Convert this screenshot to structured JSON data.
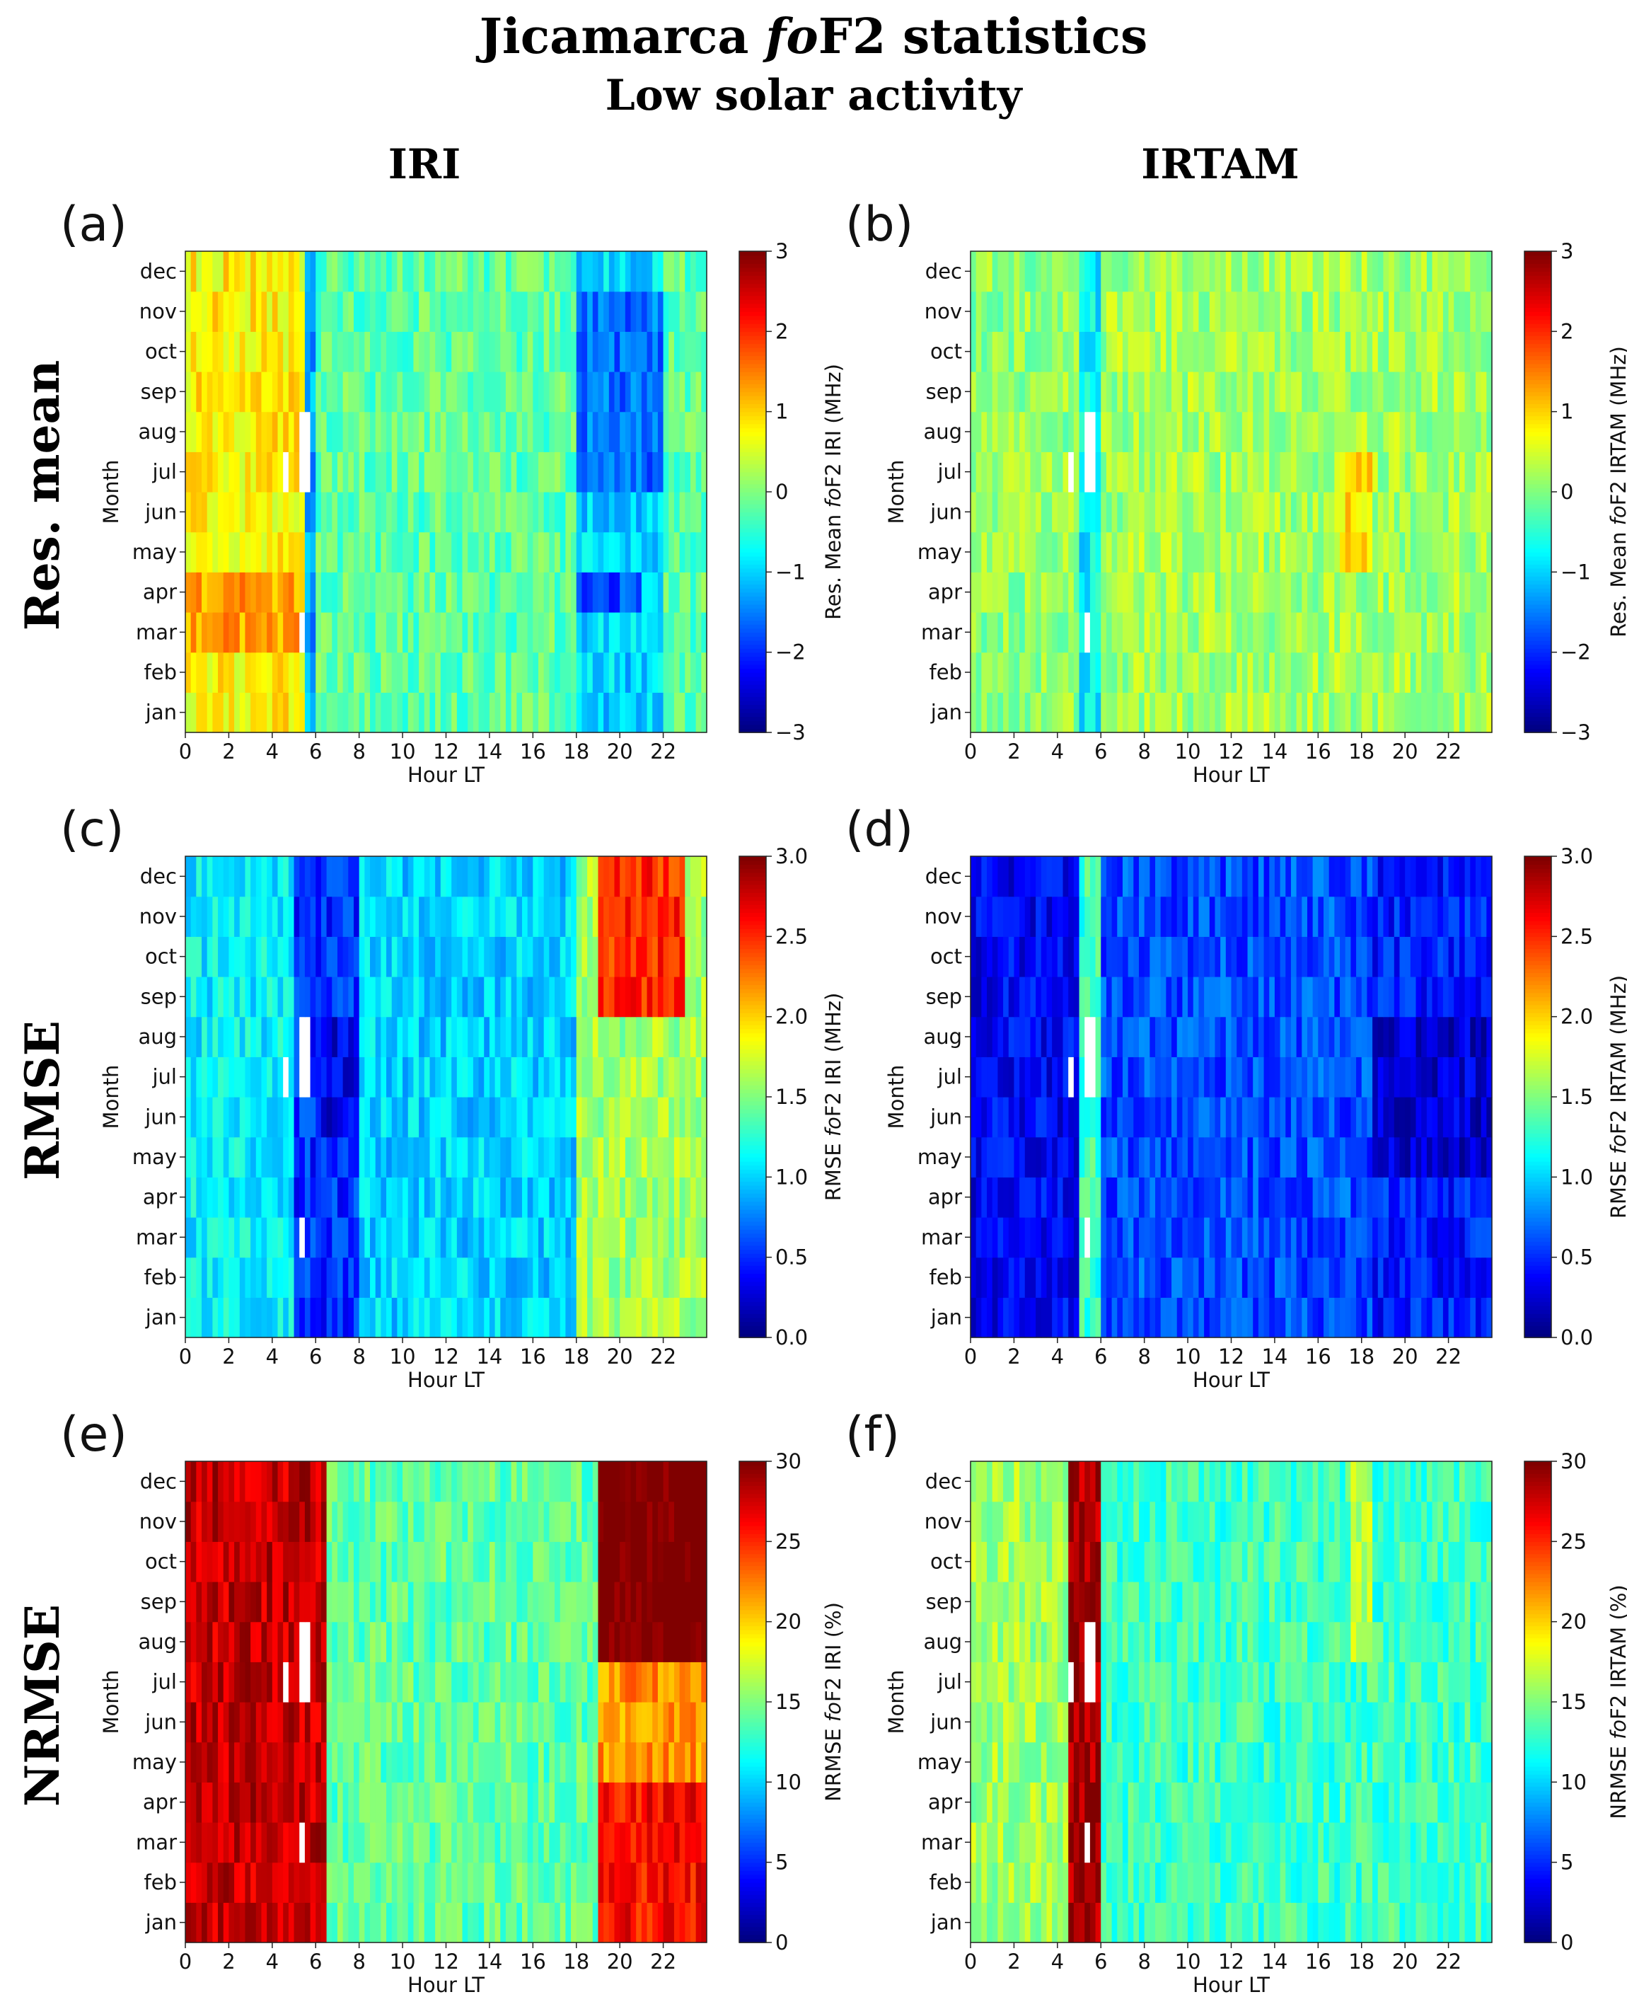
{
  "figure": {
    "title": "Jicamarca foF2 statistics",
    "title_prefix": "Jicamarca ",
    "title_italic": "fo",
    "title_suffix": "F2 statistics",
    "subtitle": "Low solar activity",
    "columns": [
      "IRI",
      "IRTAM"
    ],
    "rows": [
      "Res. mean",
      "RMSE",
      "NRMSE"
    ]
  },
  "colormap": "jet",
  "chart_data": [
    {
      "panel": "(a)",
      "type": "heatmap",
      "model": "IRI",
      "statistic": "Res. mean",
      "xlabel": "Hour LT",
      "ylabel": "Month",
      "x_ticks": [
        "0",
        "2",
        "4",
        "6",
        "8",
        "10",
        "12",
        "14",
        "16",
        "18",
        "20",
        "22"
      ],
      "y_categories": [
        "jan",
        "feb",
        "mar",
        "apr",
        "may",
        "jun",
        "jul",
        "aug",
        "sep",
        "oct",
        "nov",
        "dec"
      ],
      "xlim": [
        0,
        24
      ],
      "colorbar_label": "Res. Mean foF2 IRI (MHz)",
      "colorbar_label_parts": [
        "Res. Mean ",
        "fo",
        "F2 IRI (MHz)"
      ],
      "clim": [
        -3,
        3
      ],
      "colorbar_ticks": [
        "−3",
        "−2",
        "−1",
        "0",
        "1",
        "2",
        "3"
      ],
      "approx_pattern": [
        {
          "hours": [
            0,
            5.3
          ],
          "value": 0.8
        },
        {
          "hours": [
            5.3,
            6.0
          ],
          "value": -1.3
        },
        {
          "hours": [
            6.0,
            18.0
          ],
          "value": -0.2
        },
        {
          "hours": [
            18.0,
            22.0
          ],
          "value": -1.0
        },
        {
          "hours": [
            22.0,
            24.0
          ],
          "value": -0.2
        }
      ],
      "notes": "Bright yellow-orange 0-5 LT (strongest Mar-Apr ~1.2 MHz); blue -1.5 to -2 MHz near 18-22 LT in Jul-Nov; missing data near 4.5-5.5 LT in Jul, Aug, Mar"
    },
    {
      "panel": "(b)",
      "type": "heatmap",
      "model": "IRTAM",
      "statistic": "Res. mean",
      "xlabel": "Hour LT",
      "ylabel": "Month",
      "x_ticks": [
        "0",
        "2",
        "4",
        "6",
        "8",
        "10",
        "12",
        "14",
        "16",
        "18",
        "20",
        "22"
      ],
      "y_categories": [
        "jan",
        "feb",
        "mar",
        "apr",
        "may",
        "jun",
        "jul",
        "aug",
        "sep",
        "oct",
        "nov",
        "dec"
      ],
      "xlim": [
        0,
        24
      ],
      "colorbar_label": "Res. Mean foF2 IRTAM (MHz)",
      "colorbar_label_parts": [
        "Res. Mean ",
        "fo",
        "F2 IRTAM (MHz)"
      ],
      "clim": [
        -3,
        3
      ],
      "colorbar_ticks": [
        "−3",
        "−2",
        "−1",
        "0",
        "1",
        "2",
        "3"
      ],
      "approx_pattern": [
        {
          "hours": [
            0,
            5.0
          ],
          "value": 0.1
        },
        {
          "hours": [
            5.0,
            6.0
          ],
          "value": -0.8
        },
        {
          "hours": [
            6.0,
            24.0
          ],
          "value": 0.2
        }
      ],
      "notes": "Mostly near zero (green-cyan); slight yellow near 17-18 LT May-Jul"
    },
    {
      "panel": "(c)",
      "type": "heatmap",
      "model": "IRI",
      "statistic": "RMSE",
      "xlabel": "Hour LT",
      "ylabel": "Month",
      "x_ticks": [
        "0",
        "2",
        "4",
        "6",
        "8",
        "10",
        "12",
        "14",
        "16",
        "18",
        "20",
        "22"
      ],
      "y_categories": [
        "jan",
        "feb",
        "mar",
        "apr",
        "may",
        "jun",
        "jul",
        "aug",
        "sep",
        "oct",
        "nov",
        "dec"
      ],
      "xlim": [
        0,
        24
      ],
      "colorbar_label": "RMSE foF2 IRI (MHz)",
      "colorbar_label_parts": [
        "RMSE ",
        "fo",
        "F2 IRI (MHz)"
      ],
      "clim": [
        0.0,
        3.0
      ],
      "colorbar_ticks": [
        "0.0",
        "0.5",
        "1.0",
        "1.5",
        "2.0",
        "2.5",
        "3.0"
      ],
      "approx_pattern": [
        {
          "hours": [
            0,
            5.0
          ],
          "value": 1.1
        },
        {
          "hours": [
            5.0,
            8.0
          ],
          "value": 0.5
        },
        {
          "hours": [
            8.0,
            18.0
          ],
          "value": 1.0
        },
        {
          "hours": [
            18.0,
            23.0
          ],
          "value": 1.6
        }
      ],
      "notes": "Orange-red up to ~2.5 MHz at 19-22 LT in Sep-Dec"
    },
    {
      "panel": "(d)",
      "type": "heatmap",
      "model": "IRTAM",
      "statistic": "RMSE",
      "xlabel": "Hour LT",
      "ylabel": "Month",
      "x_ticks": [
        "0",
        "2",
        "4",
        "6",
        "8",
        "10",
        "12",
        "14",
        "16",
        "18",
        "20",
        "22"
      ],
      "y_categories": [
        "jan",
        "feb",
        "mar",
        "apr",
        "may",
        "jun",
        "jul",
        "aug",
        "sep",
        "oct",
        "nov",
        "dec"
      ],
      "xlim": [
        0,
        24
      ],
      "colorbar_label": "RMSE foF2 IRTAM (MHz)",
      "colorbar_label_parts": [
        "RMSE ",
        "fo",
        "F2 IRTAM (MHz)"
      ],
      "clim": [
        0.0,
        3.0
      ],
      "colorbar_ticks": [
        "0.0",
        "0.5",
        "1.0",
        "1.5",
        "2.0",
        "2.5",
        "3.0"
      ],
      "approx_pattern": [
        {
          "hours": [
            0,
            5.0
          ],
          "value": 0.35
        },
        {
          "hours": [
            5.0,
            6.0
          ],
          "value": 1.3
        },
        {
          "hours": [
            6.0,
            18.5
          ],
          "value": 0.6
        },
        {
          "hours": [
            18.5,
            24.0
          ],
          "value": 0.45
        }
      ],
      "notes": "Mostly deep blue; brighter cyan stripe near 5-6 LT"
    },
    {
      "panel": "(e)",
      "type": "heatmap",
      "model": "IRI",
      "statistic": "NRMSE",
      "xlabel": "Hour LT",
      "ylabel": "Month",
      "x_ticks": [
        "0",
        "2",
        "4",
        "6",
        "8",
        "10",
        "12",
        "14",
        "16",
        "18",
        "20",
        "22"
      ],
      "y_categories": [
        "jan",
        "feb",
        "mar",
        "apr",
        "may",
        "jun",
        "jul",
        "aug",
        "sep",
        "oct",
        "nov",
        "dec"
      ],
      "xlim": [
        0,
        24
      ],
      "colorbar_label": "NRMSE foF2 IRI (%)",
      "colorbar_label_parts": [
        "NRMSE ",
        "fo",
        "F2 IRI (%)"
      ],
      "clim": [
        0,
        30
      ],
      "colorbar_ticks": [
        "0",
        "5",
        "10",
        "15",
        "20",
        "25",
        "30"
      ],
      "approx_pattern": [
        {
          "hours": [
            0,
            6.3
          ],
          "value": 28
        },
        {
          "hours": [
            6.3,
            19.0
          ],
          "value": 14
        },
        {
          "hours": [
            19.0,
            24.0
          ],
          "value": 26
        }
      ],
      "notes": "Dark red (>30%) at 2-6 LT all months and 19-23 LT Aug-Dec"
    },
    {
      "panel": "(f)",
      "type": "heatmap",
      "model": "IRTAM",
      "statistic": "NRMSE",
      "xlabel": "Hour LT",
      "ylabel": "Month",
      "x_ticks": [
        "0",
        "2",
        "4",
        "6",
        "8",
        "10",
        "12",
        "14",
        "16",
        "18",
        "20",
        "22"
      ],
      "y_categories": [
        "jan",
        "feb",
        "mar",
        "apr",
        "may",
        "jun",
        "jul",
        "aug",
        "sep",
        "oct",
        "nov",
        "dec"
      ],
      "xlim": [
        0,
        24
      ],
      "colorbar_label": "NRMSE foF2 IRTAM (%)",
      "colorbar_label_parts": [
        "NRMSE ",
        "fo",
        "F2 IRTAM (%)"
      ],
      "clim": [
        0,
        30
      ],
      "colorbar_ticks": [
        "0",
        "5",
        "10",
        "15",
        "20",
        "25",
        "30"
      ],
      "approx_pattern": [
        {
          "hours": [
            0,
            4.5
          ],
          "value": 16
        },
        {
          "hours": [
            4.5,
            6.0
          ],
          "value": 29
        },
        {
          "hours": [
            6.0,
            24.0
          ],
          "value": 13
        }
      ],
      "notes": "Dark red band at 4.5-6 LT; elsewhere cyan-green 10-18%"
    }
  ]
}
